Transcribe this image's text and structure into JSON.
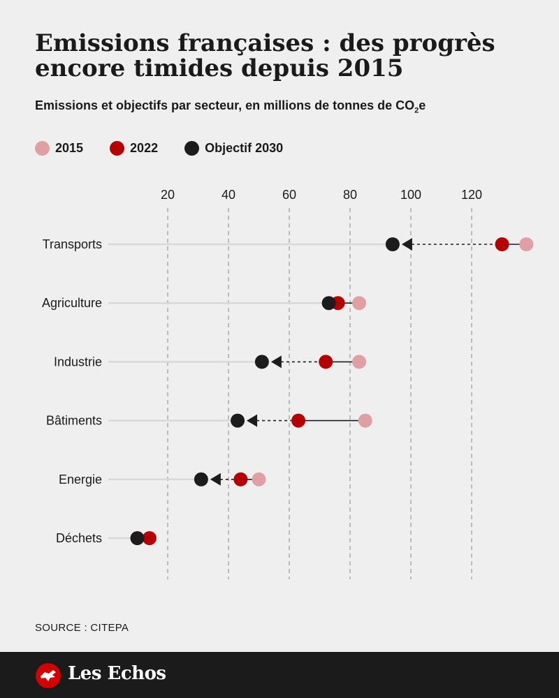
{
  "title": "Emissions françaises : des progrès encore timides depuis 2015",
  "subtitle_main": "Emissions et objectifs par secteur, en millions de tonnes de CO",
  "subtitle_sub": "2",
  "subtitle_tail": "e",
  "legend": [
    {
      "label": "2015",
      "color": "#e0a0a3"
    },
    {
      "label": "2022",
      "color": "#b40000"
    },
    {
      "label": "Objectif 2030",
      "color": "#1c1c1c"
    }
  ],
  "source": "SOURCE : CITEPA",
  "brand": "Les Echos",
  "chart_data": {
    "type": "dot-plot",
    "title": "Emissions françaises : des progrès encore timides depuis 2015",
    "unit": "millions de tonnes de CO2e",
    "x_ticks": [
      20,
      40,
      60,
      80,
      100,
      120
    ],
    "xlim": [
      0,
      140
    ],
    "grid": "vertical dashed",
    "categories": [
      "Transports",
      "Agriculture",
      "Industrie",
      "Bâtiments",
      "Energie",
      "Déchets"
    ],
    "series": [
      {
        "name": "2015",
        "color": "#e0a0a3",
        "values": [
          138,
          83,
          83,
          85,
          50,
          null
        ]
      },
      {
        "name": "2022",
        "color": "#b40000",
        "values": [
          130,
          76,
          72,
          63,
          44,
          14
        ]
      },
      {
        "name": "Objectif 2030",
        "color": "#1c1c1c",
        "values": [
          94,
          73,
          51,
          43,
          31,
          10
        ]
      }
    ]
  }
}
